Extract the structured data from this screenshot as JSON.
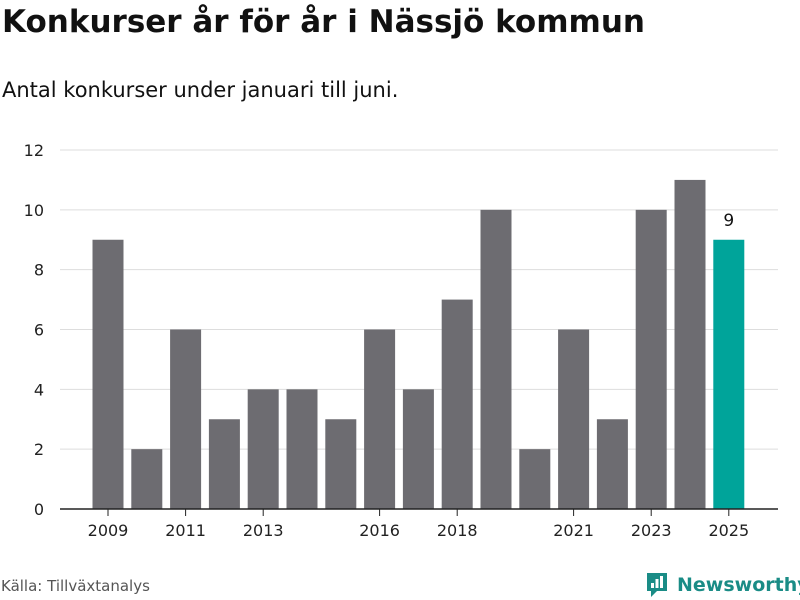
{
  "title": "Konkurser år för år i Nässjö kommun",
  "subtitle": "Antal konkurser under januari till juni.",
  "source": "Källa: Tillväxtanalys",
  "brand": "Newsworthy",
  "chart_data": {
    "type": "bar",
    "categories": [
      "2009",
      "2010",
      "2011",
      "2012",
      "2013",
      "2014",
      "2015",
      "2016",
      "2017",
      "2018",
      "2019",
      "2020",
      "2021",
      "2022",
      "2023",
      "2024",
      "2025"
    ],
    "values": [
      9,
      2,
      6,
      3,
      4,
      4,
      3,
      6,
      4,
      7,
      10,
      2,
      6,
      3,
      10,
      11,
      9
    ],
    "x_tick_labels": [
      "2009",
      "2011",
      "2013",
      "2016",
      "2018",
      "2021",
      "2023",
      "2025"
    ],
    "y_ticks": [
      0,
      2,
      4,
      6,
      8,
      10,
      12
    ],
    "ylim": [
      0,
      12
    ],
    "highlight": {
      "category": "2025",
      "label": "9"
    },
    "grid": true,
    "colors": {
      "bar": "#6d6c71",
      "highlight": "#00a49a",
      "grid": "#dddddd",
      "axis": "#222222"
    }
  }
}
